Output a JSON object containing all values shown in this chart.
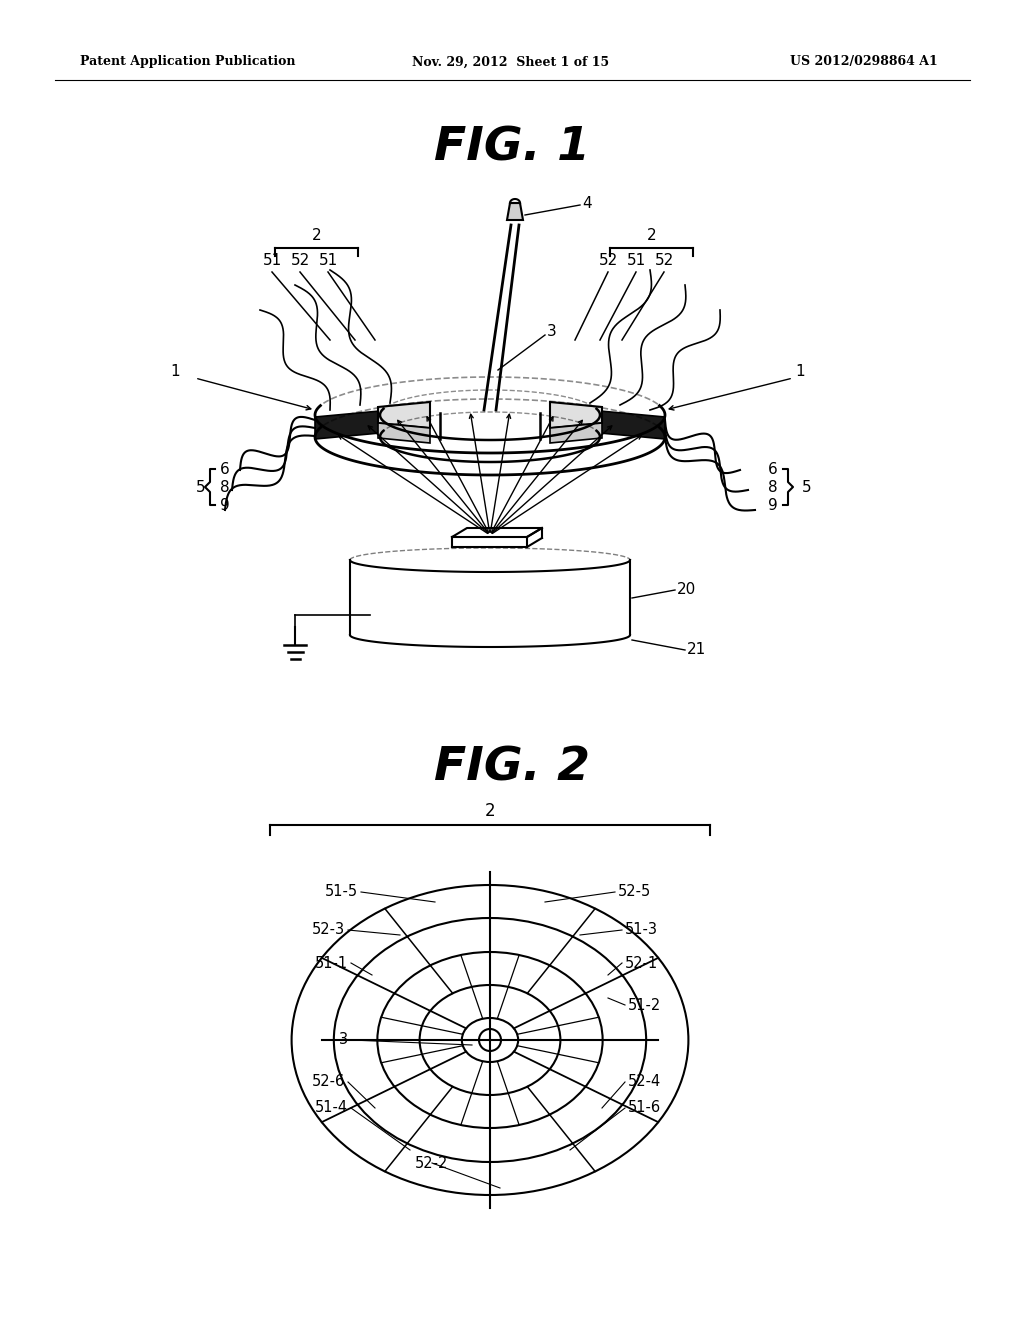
{
  "bg_color": "#ffffff",
  "line_color": "#000000",
  "header_left": "Patent Application Publication",
  "header_center": "Nov. 29, 2012  Sheet 1 of 15",
  "header_right": "US 2012/0298864 A1",
  "fig1_title": "FIG. 1",
  "fig2_title": "FIG. 2"
}
